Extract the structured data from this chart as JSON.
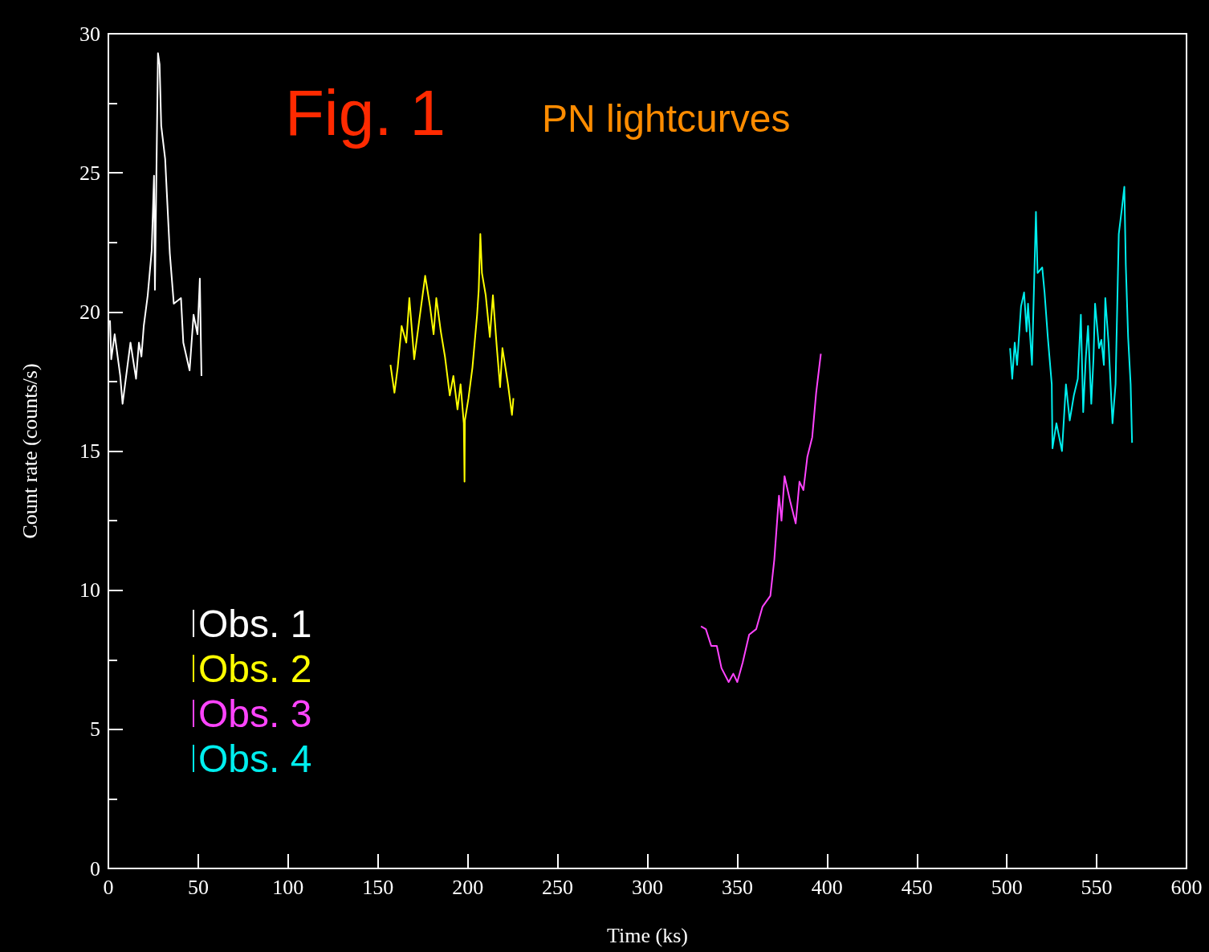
{
  "chart_data": {
    "type": "line",
    "title": "Fig. 1",
    "subtitle": "PN lightcurves",
    "xlabel": "Time (ks)",
    "ylabel": "Count rate (counts/s)",
    "xlim": [
      0,
      600
    ],
    "xticks": [
      0,
      50,
      100,
      150,
      200,
      250,
      300,
      350,
      400,
      450,
      500,
      550,
      600
    ],
    "ylim": [
      0,
      30
    ],
    "yticks": [
      0,
      5,
      10,
      15,
      20,
      25,
      30
    ],
    "grid": false,
    "marker": "none",
    "line_style": "solid",
    "legend": "bottom left",
    "series": [
      {
        "name": "Obs. 1",
        "color": "#ffffff",
        "x": [
          0.9,
          1.6,
          3.5,
          6.6,
          7.9,
          12.3,
          15.4,
          17.0,
          18.4,
          19.7,
          21.9,
          24.1,
          25.4,
          25.9,
          27.6,
          28.5,
          29.4,
          31.6,
          34.2,
          36.4,
          40.4,
          41.7,
          45.2,
          47.4,
          49.6,
          50.9,
          51.8
        ],
        "values": [
          19.7,
          18.3,
          19.2,
          17.7,
          16.7,
          18.9,
          17.6,
          18.9,
          18.4,
          19.5,
          20.6,
          22.2,
          24.9,
          20.8,
          29.3,
          28.9,
          26.7,
          25.5,
          22.1,
          20.3,
          20.5,
          18.9,
          17.9,
          19.9,
          19.2,
          21.2,
          17.7
        ]
      },
      {
        "name": "Obs. 2",
        "color": "#ffff00",
        "x": [
          157,
          159.2,
          161,
          163.2,
          165.8,
          167.5,
          170.2,
          173.2,
          176.3,
          179,
          181,
          182.5,
          185,
          187.3,
          190,
          192,
          194.3,
          196,
          197.8,
          198.2,
          198.4,
          200.4,
          202.6,
          205.2,
          206.1,
          207,
          207.9,
          210,
          212.3,
          214,
          216.2,
          218,
          219.3,
          222.4,
          224.6,
          225.4
        ],
        "values": [
          18.1,
          17.1,
          18.0,
          19.5,
          18.9,
          20.5,
          18.3,
          19.8,
          21.3,
          20.2,
          19.2,
          20.5,
          19.3,
          18.4,
          17.0,
          17.7,
          16.5,
          17.4,
          16.0,
          13.9,
          16.1,
          16.9,
          18.0,
          19.9,
          20.8,
          22.8,
          21.4,
          20.6,
          19.1,
          20.6,
          18.7,
          17.3,
          18.7,
          17.4,
          16.3,
          16.9
        ]
      },
      {
        "name": "Obs. 3",
        "color": "#ff44ff",
        "x": [
          329.8,
          332.5,
          335.5,
          338.6,
          341.2,
          345.2,
          347.8,
          350,
          353,
          356.6,
          360.5,
          364,
          368.4,
          370.6,
          373.2,
          374.6,
          376.3,
          379.4,
          382.5,
          384.6,
          386.8,
          389,
          391.7,
          393.9,
          396.5
        ],
        "values": [
          8.7,
          8.6,
          8.0,
          8.0,
          7.2,
          6.7,
          7.0,
          6.7,
          7.4,
          8.4,
          8.6,
          9.4,
          9.8,
          11.1,
          13.4,
          12.5,
          14.1,
          13.2,
          12.4,
          13.9,
          13.6,
          14.8,
          15.5,
          17.1,
          18.5
        ]
      },
      {
        "name": "Obs. 4",
        "color": "#00eeee",
        "x": [
          501.8,
          503,
          504.4,
          505.7,
          507.9,
          509.6,
          511,
          511.8,
          514,
          516.2,
          517.1,
          519.7,
          521,
          522.8,
          525,
          525.4,
          527.6,
          530.7,
          532.9,
          535,
          537.3,
          539.5,
          541.2,
          542.5,
          543.9,
          545.2,
          547,
          548.2,
          549.1,
          551.3,
          552.6,
          554,
          554.8,
          556.6,
          558.8,
          560.5,
          562.3,
          564,
          565.4,
          566.2,
          567.5,
          568.9,
          569.7
        ],
        "values": [
          18.7,
          17.6,
          18.9,
          18.1,
          20.2,
          20.7,
          19.3,
          20.3,
          18.1,
          23.6,
          21.4,
          21.6,
          20.7,
          19.1,
          17.4,
          15.1,
          16.0,
          15.0,
          17.4,
          16.1,
          17.0,
          17.6,
          19.9,
          16.4,
          18.3,
          19.5,
          16.7,
          18.3,
          20.3,
          18.7,
          19.0,
          18.1,
          20.5,
          18.9,
          16.0,
          17.4,
          22.8,
          23.7,
          24.5,
          21.7,
          19.1,
          17.4,
          15.3
        ]
      }
    ]
  }
}
